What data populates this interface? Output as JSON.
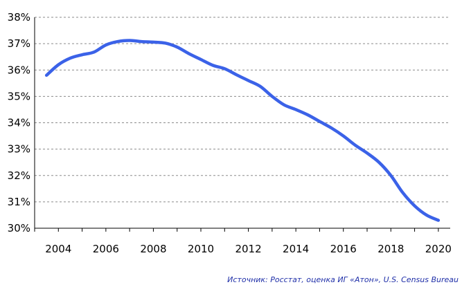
{
  "chart_data": {
    "type": "line",
    "x": [
      2003.5,
      2004,
      2004.5,
      2005,
      2005.5,
      2006,
      2006.5,
      2007,
      2007.5,
      2008,
      2008.5,
      2009,
      2009.5,
      2010,
      2010.5,
      2011,
      2011.5,
      2012,
      2012.5,
      2013,
      2013.5,
      2014,
      2014.5,
      2015,
      2015.5,
      2016,
      2016.5,
      2017,
      2017.5,
      2018,
      2018.5,
      2019,
      2019.5,
      2020
    ],
    "y": [
      35.8,
      36.2,
      36.45,
      36.58,
      36.68,
      36.95,
      37.08,
      37.12,
      37.08,
      37.06,
      37.02,
      36.87,
      36.62,
      36.4,
      36.18,
      36.05,
      35.82,
      35.6,
      35.38,
      35.0,
      34.68,
      34.5,
      34.3,
      34.05,
      33.8,
      33.5,
      33.15,
      32.85,
      32.5,
      32.0,
      31.35,
      30.85,
      30.5,
      30.3
    ],
    "line_color": "#3b62e8",
    "ylim": [
      30,
      38
    ],
    "xlim": [
      2003,
      2020.5
    ],
    "yticks": [
      "30%",
      "31%",
      "32%",
      "33%",
      "34%",
      "35%",
      "36%",
      "37%",
      "38%"
    ],
    "xticks": [
      "2004",
      "2006",
      "2008",
      "2010",
      "2012",
      "2014",
      "2016",
      "2018",
      "2020"
    ],
    "xtick_values": [
      2004,
      2006,
      2008,
      2010,
      2012,
      2014,
      2016,
      2018,
      2020
    ],
    "grid": "horizontal-dashed",
    "source": "Источник: Росстат, оценка ИГ «Атон», U.S. Census Bureau"
  }
}
